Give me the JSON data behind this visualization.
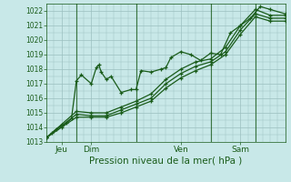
{
  "title": "",
  "xlabel": "Pression niveau de la mer( hPa )",
  "ylabel": "",
  "ylim": [
    1013,
    1022.5
  ],
  "xlim": [
    0,
    96
  ],
  "yticks": [
    1013,
    1014,
    1015,
    1016,
    1017,
    1018,
    1019,
    1020,
    1021,
    1022
  ],
  "xtick_positions": [
    6,
    18,
    54,
    78
  ],
  "xtick_labels": [
    "Jeu",
    "Dim",
    "Ven",
    "Sam"
  ],
  "bg_color": "#c8e8e8",
  "grid_color": "#9bbfbf",
  "line_color": "#1a5c1a",
  "series": [
    {
      "x": [
        0,
        2,
        4,
        6,
        8,
        10,
        12,
        14,
        18,
        20,
        21,
        22,
        24,
        26,
        30,
        34,
        36,
        38,
        42,
        46,
        48,
        50,
        54,
        58,
        62,
        66,
        70,
        74,
        78,
        82,
        86,
        90,
        96
      ],
      "y": [
        1013.3,
        1013.6,
        1013.9,
        1014.1,
        1014.3,
        1014.6,
        1017.2,
        1017.6,
        1017.0,
        1018.1,
        1018.3,
        1017.8,
        1017.3,
        1017.5,
        1016.4,
        1016.6,
        1016.6,
        1017.9,
        1017.8,
        1018.0,
        1018.1,
        1018.8,
        1019.2,
        1019.0,
        1018.6,
        1019.1,
        1019.0,
        1020.5,
        1021.0,
        1021.5,
        1022.3,
        1022.1,
        1021.8
      ],
      "marker": "+"
    },
    {
      "x": [
        0,
        6,
        12,
        18,
        24,
        30,
        36,
        42,
        48,
        54,
        60,
        66,
        72,
        78,
        84,
        90,
        96
      ],
      "y": [
        1013.3,
        1014.2,
        1015.1,
        1015.0,
        1015.0,
        1015.4,
        1015.8,
        1016.3,
        1017.3,
        1018.0,
        1018.5,
        1018.7,
        1019.5,
        1021.0,
        1022.1,
        1021.7,
        1021.7
      ],
      "marker": "+"
    },
    {
      "x": [
        0,
        6,
        12,
        18,
        24,
        30,
        36,
        42,
        48,
        54,
        60,
        66,
        72,
        78,
        84,
        90,
        96
      ],
      "y": [
        1013.3,
        1014.1,
        1014.9,
        1014.8,
        1014.8,
        1015.2,
        1015.6,
        1016.0,
        1017.0,
        1017.7,
        1018.2,
        1018.5,
        1019.2,
        1020.7,
        1021.8,
        1021.5,
        1021.5
      ],
      "marker": "+"
    },
    {
      "x": [
        0,
        6,
        12,
        18,
        24,
        30,
        36,
        42,
        48,
        54,
        60,
        66,
        72,
        78,
        84,
        90,
        96
      ],
      "y": [
        1013.3,
        1014.0,
        1014.7,
        1014.7,
        1014.7,
        1015.0,
        1015.4,
        1015.8,
        1016.7,
        1017.4,
        1017.9,
        1018.3,
        1019.0,
        1020.4,
        1021.6,
        1021.3,
        1021.3
      ],
      "marker": "+"
    }
  ],
  "vlines": [
    12,
    36,
    66,
    84
  ],
  "figsize": [
    3.2,
    2.0
  ],
  "dpi": 100
}
